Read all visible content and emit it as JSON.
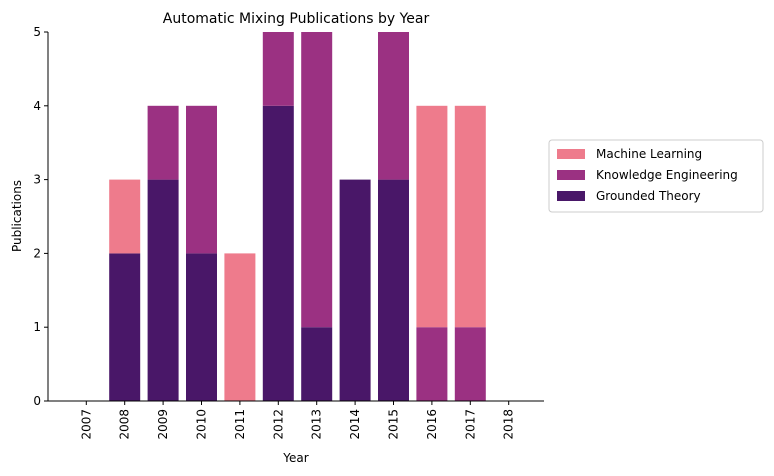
{
  "chart_data": {
    "type": "bar",
    "stacked": true,
    "title": "Automatic Mixing Publications by Year",
    "xlabel": "Year",
    "ylabel": "Publications",
    "categories": [
      "2007",
      "2008",
      "2009",
      "2010",
      "2011",
      "2012",
      "2013",
      "2014",
      "2015",
      "2016",
      "2017",
      "2018"
    ],
    "ylim": [
      0,
      5
    ],
    "yticks": [
      0,
      1,
      2,
      3,
      4,
      5
    ],
    "series": [
      {
        "name": "Grounded Theory",
        "color": "#491768",
        "values": [
          0,
          2,
          3,
          2,
          0,
          4,
          1,
          3,
          3,
          0,
          0,
          0
        ]
      },
      {
        "name": "Knowledge Engineering",
        "color": "#9b3182",
        "values": [
          0,
          0,
          1,
          2,
          0,
          1,
          4,
          0,
          2,
          1,
          1,
          0
        ]
      },
      {
        "name": "Machine Learning",
        "color": "#ee7b8c",
        "values": [
          0,
          1,
          0,
          0,
          2,
          0,
          0,
          0,
          0,
          3,
          3,
          0
        ]
      }
    ],
    "legend_order": [
      "Machine Learning",
      "Knowledge Engineering",
      "Grounded Theory"
    ],
    "legend_position": "right",
    "grid": false
  }
}
